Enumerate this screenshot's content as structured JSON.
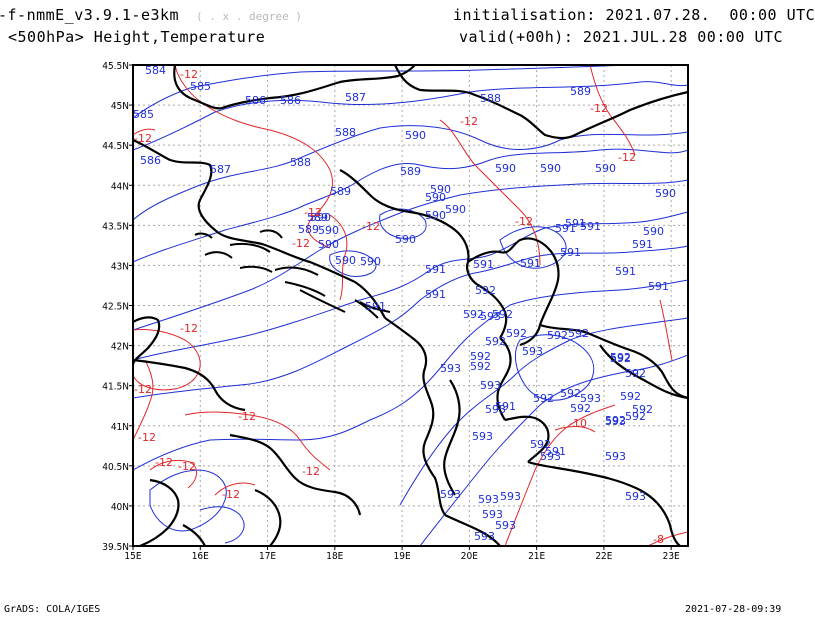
{
  "header": {
    "model": "-f-nmmE_v3.9.1-e3km",
    "units": "( . x . degree )",
    "level_fields": "<500hPa> Height,Temperature",
    "init": "initialisation: 2021.07.28.  00:00 UTC",
    "valid": "valid(+00h): 2021.JUL.28 00:00 UTC"
  },
  "footer": {
    "credit": "GrADS: COLA/IGES",
    "timestamp": "2021-07-28-09:39"
  },
  "axes": {
    "lon_labels": [
      "15E",
      "16E",
      "17E",
      "18E",
      "19E",
      "20E",
      "21E",
      "22E",
      "23E"
    ],
    "lat_labels": [
      "45.5N",
      "45N",
      "44.5N",
      "44N",
      "43.5N",
      "43N",
      "42.5N",
      "42N",
      "41.5N",
      "41N",
      "40.5N",
      "40N",
      "39.5N"
    ]
  },
  "colors": {
    "height": "#1f2fd6",
    "temperature": "#e0262a",
    "border": "#000000",
    "grid": "#9a9a9a"
  },
  "height_labels": [
    {
      "t": "584"
    },
    {
      "t": "585"
    },
    {
      "t": "586"
    },
    {
      "t": "586"
    },
    {
      "t": "587"
    },
    {
      "t": "588"
    },
    {
      "t": "589"
    },
    {
      "t": "585"
    },
    {
      "t": "586"
    },
    {
      "t": "587"
    },
    {
      "t": "588"
    },
    {
      "t": "588"
    },
    {
      "t": "589"
    },
    {
      "t": "590"
    },
    {
      "t": "590"
    },
    {
      "t": "590"
    },
    {
      "t": "589"
    },
    {
      "t": "590"
    },
    {
      "t": "590"
    },
    {
      "t": "590"
    },
    {
      "t": "590"
    },
    {
      "t": "589"
    },
    {
      "t": "590"
    },
    {
      "t": "590"
    },
    {
      "t": "590"
    },
    {
      "t": "589"
    },
    {
      "t": "590"
    },
    {
      "t": "590"
    },
    {
      "t": "590"
    },
    {
      "t": "590"
    },
    {
      "t": "590"
    },
    {
      "t": "591"
    },
    {
      "t": "591"
    },
    {
      "t": "591"
    },
    {
      "t": "591"
    },
    {
      "t": "591"
    },
    {
      "t": "591"
    },
    {
      "t": "591"
    },
    {
      "t": "591"
    },
    {
      "t": "591"
    },
    {
      "t": "592"
    },
    {
      "t": "592"
    },
    {
      "t": "592"
    },
    {
      "t": "592"
    },
    {
      "t": "592"
    },
    {
      "t": "592"
    },
    {
      "t": "592"
    },
    {
      "t": "592"
    },
    {
      "t": "592"
    },
    {
      "t": "592"
    },
    {
      "t": "593"
    },
    {
      "t": "593"
    },
    {
      "t": "593"
    },
    {
      "t": "593"
    },
    {
      "t": "593"
    },
    {
      "t": "593"
    },
    {
      "t": "593"
    },
    {
      "t": "593"
    },
    {
      "t": "593"
    },
    {
      "t": "593"
    },
    {
      "t": "593"
    },
    {
      "t": "593"
    },
    {
      "t": "593"
    },
    {
      "t": "591"
    },
    {
      "t": "590"
    },
    {
      "t": "592"
    },
    {
      "t": "592"
    },
    {
      "t": "592"
    },
    {
      "t": "592"
    },
    {
      "t": "592"
    },
    {
      "t": "592"
    },
    {
      "t": "593"
    },
    {
      "t": "593"
    },
    {
      "t": "592"
    },
    {
      "t": "591"
    },
    {
      "t": "591"
    },
    {
      "t": "591"
    },
    {
      "t": "591"
    },
    {
      "t": "592"
    },
    {
      "t": "593"
    },
    {
      "t": "592"
    },
    {
      "t": "592"
    },
    {
      "t": "593"
    }
  ],
  "temperature_labels": [
    {
      "t": "-12"
    },
    {
      "t": "-12"
    },
    {
      "t": "-12"
    },
    {
      "t": "-12"
    },
    {
      "t": "-12"
    },
    {
      "t": "-12"
    },
    {
      "t": "-12"
    },
    {
      "t": "-12"
    },
    {
      "t": "-12"
    },
    {
      "t": "-12"
    },
    {
      "t": "-12"
    },
    {
      "t": "-12"
    },
    {
      "t": "-12"
    },
    {
      "t": "-12"
    },
    {
      "t": "-12"
    },
    {
      "t": "-12"
    },
    {
      "t": "-12"
    },
    {
      "t": "-10"
    },
    {
      "t": "-8"
    }
  ]
}
